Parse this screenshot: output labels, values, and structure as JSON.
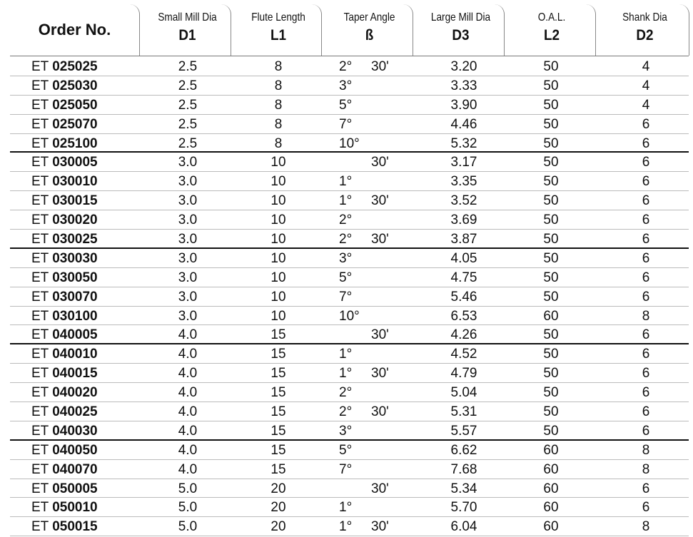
{
  "headers": {
    "order": "Order No.",
    "d1": {
      "label": "Small Mill Dia",
      "symbol": "D1"
    },
    "l1": {
      "label": "Flute Length",
      "symbol": "L1"
    },
    "taper": {
      "label": "Taper Angle",
      "symbol": "ß"
    },
    "d3": {
      "label": "Large Mill Dia",
      "symbol": "D3"
    },
    "l2": {
      "label": "O.A.L.",
      "symbol": "L2"
    },
    "d2": {
      "label": "Shank Dia",
      "symbol": "D2"
    }
  },
  "rows": [
    {
      "prefix": "ET",
      "code": "025025",
      "d1": "2.5",
      "l1": "8",
      "deg": "2°",
      "min": "30'",
      "d3": "3.20",
      "l2": "50",
      "d2": "4"
    },
    {
      "prefix": "ET",
      "code": "025030",
      "d1": "2.5",
      "l1": "8",
      "deg": "3°",
      "min": "",
      "d3": "3.33",
      "l2": "50",
      "d2": "4"
    },
    {
      "prefix": "ET",
      "code": "025050",
      "d1": "2.5",
      "l1": "8",
      "deg": "5°",
      "min": "",
      "d3": "3.90",
      "l2": "50",
      "d2": "4"
    },
    {
      "prefix": "ET",
      "code": "025070",
      "d1": "2.5",
      "l1": "8",
      "deg": "7°",
      "min": "",
      "d3": "4.46",
      "l2": "50",
      "d2": "6"
    },
    {
      "prefix": "ET",
      "code": "025100",
      "d1": "2.5",
      "l1": "8",
      "deg": "10°",
      "min": "",
      "d3": "5.32",
      "l2": "50",
      "d2": "6"
    },
    {
      "prefix": "ET",
      "code": "030005",
      "d1": "3.0",
      "l1": "10",
      "deg": "",
      "min": "30'",
      "d3": "3.17",
      "l2": "50",
      "d2": "6"
    },
    {
      "prefix": "ET",
      "code": "030010",
      "d1": "3.0",
      "l1": "10",
      "deg": "1°",
      "min": "",
      "d3": "3.35",
      "l2": "50",
      "d2": "6"
    },
    {
      "prefix": "ET",
      "code": "030015",
      "d1": "3.0",
      "l1": "10",
      "deg": "1°",
      "min": "30'",
      "d3": "3.52",
      "l2": "50",
      "d2": "6"
    },
    {
      "prefix": "ET",
      "code": "030020",
      "d1": "3.0",
      "l1": "10",
      "deg": "2°",
      "min": "",
      "d3": "3.69",
      "l2": "50",
      "d2": "6"
    },
    {
      "prefix": "ET",
      "code": "030025",
      "d1": "3.0",
      "l1": "10",
      "deg": "2°",
      "min": "30'",
      "d3": "3.87",
      "l2": "50",
      "d2": "6"
    },
    {
      "prefix": "ET",
      "code": "030030",
      "d1": "3.0",
      "l1": "10",
      "deg": "3°",
      "min": "",
      "d3": "4.05",
      "l2": "50",
      "d2": "6"
    },
    {
      "prefix": "ET",
      "code": "030050",
      "d1": "3.0",
      "l1": "10",
      "deg": "5°",
      "min": "",
      "d3": "4.75",
      "l2": "50",
      "d2": "6"
    },
    {
      "prefix": "ET",
      "code": "030070",
      "d1": "3.0",
      "l1": "10",
      "deg": "7°",
      "min": "",
      "d3": "5.46",
      "l2": "50",
      "d2": "6"
    },
    {
      "prefix": "ET",
      "code": "030100",
      "d1": "3.0",
      "l1": "10",
      "deg": "10°",
      "min": "",
      "d3": "6.53",
      "l2": "60",
      "d2": "8"
    },
    {
      "prefix": "ET",
      "code": "040005",
      "d1": "4.0",
      "l1": "15",
      "deg": "",
      "min": "30'",
      "d3": "4.26",
      "l2": "50",
      "d2": "6"
    },
    {
      "prefix": "ET",
      "code": "040010",
      "d1": "4.0",
      "l1": "15",
      "deg": "1°",
      "min": "",
      "d3": "4.52",
      "l2": "50",
      "d2": "6"
    },
    {
      "prefix": "ET",
      "code": "040015",
      "d1": "4.0",
      "l1": "15",
      "deg": "1°",
      "min": "30'",
      "d3": "4.79",
      "l2": "50",
      "d2": "6"
    },
    {
      "prefix": "ET",
      "code": "040020",
      "d1": "4.0",
      "l1": "15",
      "deg": "2°",
      "min": "",
      "d3": "5.04",
      "l2": "50",
      "d2": "6"
    },
    {
      "prefix": "ET",
      "code": "040025",
      "d1": "4.0",
      "l1": "15",
      "deg": "2°",
      "min": "30'",
      "d3": "5.31",
      "l2": "50",
      "d2": "6"
    },
    {
      "prefix": "ET",
      "code": "040030",
      "d1": "4.0",
      "l1": "15",
      "deg": "3°",
      "min": "",
      "d3": "5.57",
      "l2": "50",
      "d2": "6"
    },
    {
      "prefix": "ET",
      "code": "040050",
      "d1": "4.0",
      "l1": "15",
      "deg": "5°",
      "min": "",
      "d3": "6.62",
      "l2": "60",
      "d2": "8"
    },
    {
      "prefix": "ET",
      "code": "040070",
      "d1": "4.0",
      "l1": "15",
      "deg": "7°",
      "min": "",
      "d3": "7.68",
      "l2": "60",
      "d2": "8"
    },
    {
      "prefix": "ET",
      "code": "050005",
      "d1": "5.0",
      "l1": "20",
      "deg": "",
      "min": "30'",
      "d3": "5.34",
      "l2": "60",
      "d2": "6"
    },
    {
      "prefix": "ET",
      "code": "050010",
      "d1": "5.0",
      "l1": "20",
      "deg": "1°",
      "min": "",
      "d3": "5.70",
      "l2": "60",
      "d2": "6"
    },
    {
      "prefix": "ET",
      "code": "050015",
      "d1": "5.0",
      "l1": "20",
      "deg": "1°",
      "min": "30'",
      "d3": "6.04",
      "l2": "60",
      "d2": "8"
    }
  ]
}
